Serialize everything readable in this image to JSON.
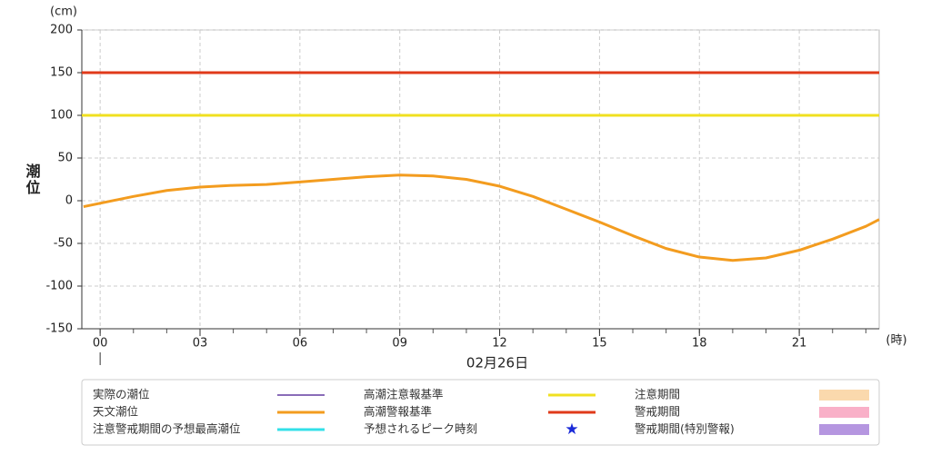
{
  "chart_data": {
    "type": "line",
    "y_unit": "(cm)",
    "y_label": "潮位",
    "x_unit": "(時)",
    "date_label": "02月26日",
    "xlim": [
      -0.55,
      23.4
    ],
    "xticks": [
      {
        "value": 0,
        "label": "00"
      },
      {
        "value": 3,
        "label": "03"
      },
      {
        "value": 6,
        "label": "06"
      },
      {
        "value": 9,
        "label": "09"
      },
      {
        "value": 12,
        "label": "12"
      },
      {
        "value": 15,
        "label": "15"
      },
      {
        "value": 18,
        "label": "18"
      },
      {
        "value": 21,
        "label": "21"
      }
    ],
    "ylim": [
      -150,
      200
    ],
    "yticks": [
      -150,
      -100,
      -50,
      0,
      50,
      100,
      150,
      200
    ],
    "grid": true,
    "series": [
      {
        "name": "天文潮位",
        "color": "#f39c1f",
        "x": [
          -0.5,
          0,
          1,
          2,
          3,
          4,
          5,
          6,
          7,
          8,
          9,
          10,
          11,
          12,
          13,
          14,
          15,
          16,
          17,
          18,
          19,
          20,
          21,
          22,
          23,
          23.4
        ],
        "values": [
          -7,
          -3,
          5,
          12,
          16,
          18,
          19,
          22,
          25,
          28,
          30,
          29,
          25,
          17,
          5,
          -10,
          -25,
          -41,
          -56,
          -66,
          -70,
          -67,
          -58,
          -45,
          -30,
          -22
        ]
      }
    ],
    "legend": [
      {
        "name": "実際の潮位",
        "color": "#8a6cb8",
        "marker": "line"
      },
      {
        "name": "注意警戒期間の予想最高潮位",
        "color": "#33e0e8",
        "marker": "line"
      },
      {
        "name": "高潮注意報基準",
        "color": "#f0e020",
        "marker": "line",
        "value": 100
      },
      {
        "name": "高潮警報基準",
        "color": "#e03a1a",
        "marker": "line",
        "value": 150
      },
      {
        "name": "予想されるピーク時刻",
        "color": "#1a2ad8",
        "marker": "star"
      },
      {
        "name": "注意期間",
        "color": "#fad9ad",
        "marker": "rect"
      },
      {
        "name": "警戒期間",
        "color": "#f9b0c8",
        "marker": "rect"
      },
      {
        "name": "警戒期間(特別警報)",
        "color": "#b596e0",
        "marker": "rect"
      }
    ]
  }
}
